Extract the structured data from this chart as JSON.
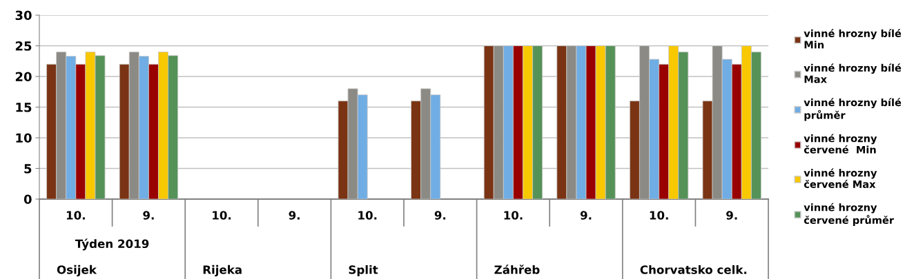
{
  "chart_data": {
    "type": "bar",
    "categories": [
      "10.",
      "9.",
      "10.",
      "9.",
      "10.",
      "9.",
      "10.",
      "9.",
      "10.",
      "9."
    ],
    "series": [
      {
        "name": "vinné hrozny bílé\nMin",
        "color": "#7a3414",
        "values": [
          22,
          22,
          null,
          null,
          16,
          16,
          25,
          25,
          16,
          16
        ]
      },
      {
        "name": "vinné hrozny bílé\nMax",
        "color": "#8c8a84",
        "values": [
          24,
          24,
          null,
          null,
          18,
          18,
          25,
          25,
          25,
          25
        ]
      },
      {
        "name": "vinné hrozny bílé\nprůměr",
        "color": "#70ade4",
        "values": [
          23.3,
          23.3,
          null,
          null,
          17,
          17,
          25,
          25,
          22.8,
          22.8
        ]
      },
      {
        "name": "vinné hrozny\nčervené  Min",
        "color": "#990000",
        "values": [
          22,
          22,
          null,
          null,
          null,
          null,
          25,
          25,
          22,
          22
        ]
      },
      {
        "name": "vinné hrozny\nčervené Max",
        "color": "#f8c800",
        "values": [
          24,
          24,
          null,
          null,
          null,
          null,
          25,
          25,
          25,
          25
        ]
      },
      {
        "name": "vinné hrozny\nčervené průměr",
        "color": "#559258",
        "values": [
          23.4,
          23.4,
          null,
          null,
          null,
          null,
          25,
          25,
          24,
          24
        ]
      }
    ],
    "annotations": [
      "Týden 2019",
      "Osijek",
      "Rijeka",
      "Split",
      "Záhřeb",
      "Chorvatsko celk."
    ],
    "ylim": [
      0,
      30
    ],
    "yticks": [
      0,
      5,
      10,
      15,
      20,
      25,
      30
    ],
    "grid": "y",
    "legend": "right"
  }
}
